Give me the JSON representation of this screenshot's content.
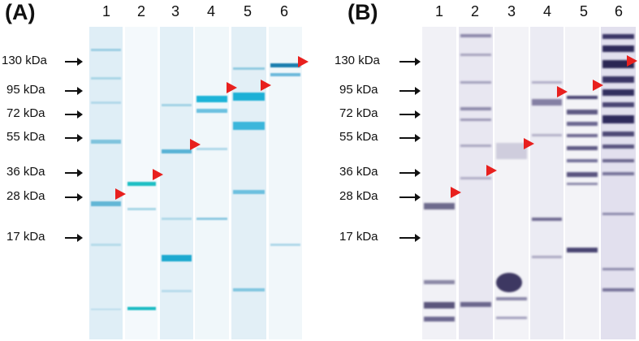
{
  "panels": {
    "a": {
      "label": "(A)",
      "lanes": [
        "1",
        "2",
        "3",
        "4",
        "5",
        "6"
      ],
      "markers": [
        "130 kDa",
        "95 kDa",
        "72 kDa",
        "55 kDa",
        "36 kDa",
        "28 kDa",
        "17 kDa"
      ],
      "band_color": "#1aa9cf",
      "lane_bg_color": "#dcedf5"
    },
    "b": {
      "label": "(B)",
      "lanes": [
        "1",
        "2",
        "3",
        "4",
        "5",
        "6"
      ],
      "markers": [
        "130 kDa",
        "95 kDa",
        "72 kDa",
        "55 kDa",
        "36 kDa",
        "28 kDa",
        "17 kDa"
      ],
      "band_color": "#2a2352",
      "lane_bg_color": "#ececf4"
    }
  },
  "highlight_marker_color": "#e8201e"
}
